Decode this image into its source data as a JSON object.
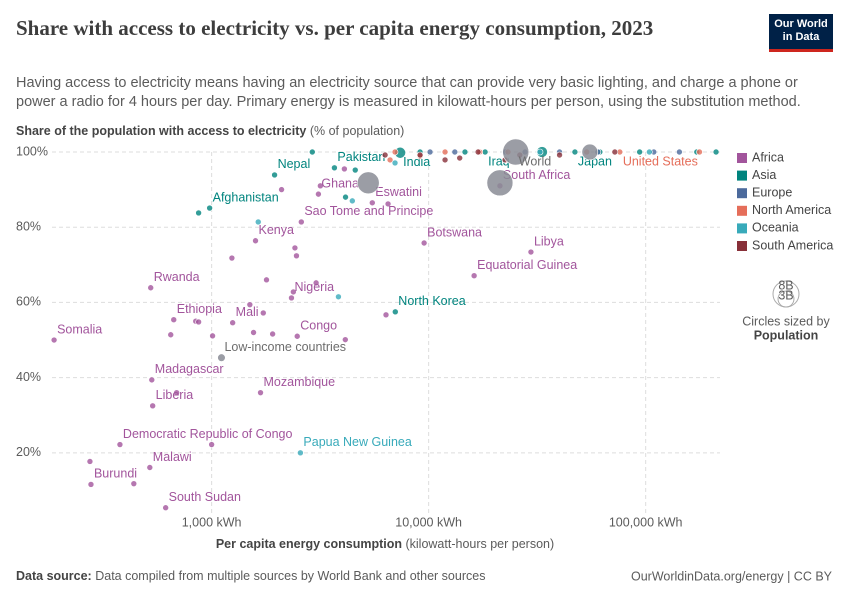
{
  "header": {
    "logo_line1": "Our World",
    "logo_line2": "in Data"
  },
  "chart_data": {
    "type": "scatter",
    "title": "Share with access to electricity vs. per capita energy consumption, 2023",
    "subtitle": "Having access to electricity means having an electricity source that can provide very basic lighting, and charge a phone or power a radio for 4 hours per day. Primary energy is measured in kilowatt-hours per person, using the substitution method.",
    "y_label": "Share of the population with access to electricity",
    "y_label_unit": "(% of population)",
    "x_label": "Per capita energy consumption",
    "x_label_unit": "(kilowatt-hours per person)",
    "x_log": true,
    "grid": true,
    "legend_position": "right",
    "xlim": [
      180,
      220000
    ],
    "ylim": [
      4,
      100
    ],
    "xticks": [
      {
        "value": 1000,
        "label": "1,000 kWh"
      },
      {
        "value": 10000,
        "label": "10,000 kWh"
      },
      {
        "value": 100000,
        "label": "100,000 kWh"
      }
    ],
    "yticks": [
      {
        "value": 20,
        "label": "20%"
      },
      {
        "value": 40,
        "label": "40%"
      },
      {
        "value": 60,
        "label": "60%"
      },
      {
        "value": 80,
        "label": "80%"
      },
      {
        "value": 100,
        "label": "100%"
      }
    ],
    "size_title": "Circles sized by",
    "size_variable": "Population",
    "size_legend": [
      {
        "value": 8000000000,
        "label": "8B"
      },
      {
        "value": 3000000000,
        "label": "3B"
      }
    ],
    "series": [
      {
        "name": "Africa",
        "color": "#a2559c",
        "x": [
          188,
          524,
          669,
          1250,
          2480,
          530,
          535,
          1680,
          378,
          519,
          278,
          614,
          1593,
          2333,
          3105,
          5500,
          2590,
          9530,
          29600,
          16200,
          21300,
          275,
          1000,
          1010,
          845,
          2100,
          3170,
          1560,
          1910,
          1730,
          1500,
          1240,
          1790,
          2380,
          3030,
          2420,
          2460,
          4130,
          6360,
          6500,
          4090,
          648,
          871,
          690,
          438
        ],
        "values": [
          50.0,
          63.9,
          55.4,
          54.6,
          51.0,
          39.4,
          32.5,
          36.0,
          22.2,
          16.1,
          11.6,
          5.4,
          76.4,
          61.2,
          88.8,
          86.5,
          81.4,
          75.8,
          73.4,
          67.1,
          91.0,
          17.7,
          22.2,
          51.1,
          55.0,
          90.0,
          91.0,
          52.0,
          51.6,
          57.2,
          59.4,
          71.8,
          66.0,
          62.8,
          65.2,
          74.5,
          72.4,
          50.1,
          56.7,
          86.2,
          95.5,
          51.4,
          54.8,
          36.0,
          11.8
        ],
        "labels": [
          "Somalia",
          "Rwanda",
          "Ethiopia",
          "Mali",
          "Congo",
          "Madagascar",
          "Liberia",
          "Mozambique",
          "Democratic Republic of Congo",
          "Malawi",
          "Burundi",
          "South Sudan",
          "Kenya",
          "Nigeria",
          "Ghana",
          "Eswatini",
          "Sao Tome and Principe",
          "Botswana",
          "Libya",
          "Equatorial Guinea",
          "South Africa",
          null,
          null,
          null,
          null,
          null,
          null,
          null,
          null,
          null,
          null,
          null,
          null,
          null,
          null,
          null,
          null,
          null,
          null,
          null,
          null,
          null,
          null,
          null,
          null
        ],
        "sizes": [
          18000000,
          14000000,
          126000000,
          23000000,
          6000000,
          30000000,
          5000000,
          33000000,
          102000000,
          21000000,
          13000000,
          11000000,
          55000000,
          220000000,
          34000000,
          1200000,
          230000,
          2600000,
          7000000,
          1700000,
          60000000,
          10000000,
          20000000,
          20000000,
          20000000,
          20000000,
          20000000,
          20000000,
          20000000,
          20000000,
          20000000,
          20000000,
          20000000,
          20000000,
          20000000,
          20000000,
          20000000,
          20000000,
          20000000,
          20000000,
          20000000,
          20000000,
          20000000,
          20000000,
          20000000
        ]
      },
      {
        "name": "Asia",
        "color": "#00847e",
        "x": [
          1950,
          3680,
          979,
          7390,
          18200,
          33300,
          47200,
          7020,
          871,
          2910,
          4140,
          4590,
          93800,
          172000,
          211000,
          9130,
          14700,
          61500
        ],
        "values": [
          93.9,
          95.8,
          85.1,
          99.8,
          100,
          100,
          100,
          57.5,
          83.8,
          100,
          88.0,
          95.2,
          100,
          100,
          100,
          100,
          100,
          100
        ],
        "labels": [
          "Nepal",
          "Pakistan",
          "Afghanistan",
          "India",
          "Iraq",
          null,
          "Japan",
          "North Korea",
          null,
          null,
          null,
          null,
          null,
          null,
          null,
          null,
          null,
          null
        ],
        "sizes": [
          30000000,
          240000000,
          42000000,
          1430000000,
          45000000,
          1410000000,
          124000000,
          26000000,
          20000000,
          20000000,
          20000000,
          20000000,
          20000000,
          20000000,
          20000000,
          20000000,
          20000000,
          20000000
        ]
      },
      {
        "name": "Europe",
        "color": "#4c6a9c",
        "x": [
          10150,
          13200,
          22500,
          27800,
          40100,
          60200,
          109000,
          143000
        ],
        "values": [
          100,
          100,
          100,
          100,
          100,
          100,
          100,
          100
        ],
        "labels": [
          null,
          null,
          null,
          null,
          null,
          null,
          null,
          null
        ],
        "sizes": [
          20000000,
          20000000,
          84000000,
          68000000,
          20000000,
          20000000,
          20000000,
          20000000
        ]
      },
      {
        "name": "North America",
        "color": "#e56e5a",
        "x": [
          76000,
          7000,
          11900,
          17200,
          23200,
          53500,
          177000,
          6640,
          9130
        ],
        "values": [
          100,
          100,
          100,
          100,
          100,
          100,
          100,
          97.9,
          98.9
        ],
        "labels": [
          "United States",
          null,
          null,
          null,
          null,
          null,
          null,
          null,
          null
        ],
        "sizes": [
          335000000,
          20000000,
          20000000,
          128000000,
          20000000,
          20000000,
          20000000,
          20000000,
          20000000
        ]
      },
      {
        "name": "Oceania",
        "color": "#38aaba",
        "x": [
          2565,
          1640,
          3840,
          4450,
          32600,
          104000,
          7000
        ],
        "values": [
          20.0,
          81.4,
          61.5,
          87.0,
          100,
          100,
          97.1
        ],
        "labels": [
          "Papua New Guinea",
          null,
          null,
          null,
          null,
          null,
          null
        ],
        "sizes": [
          10000000,
          20000000,
          20000000,
          20000000,
          20000000,
          26000000,
          20000000
        ]
      },
      {
        "name": "South America",
        "color": "#883039",
        "x": [
          6300,
          9130,
          11900,
          13900,
          16900,
          22500,
          26300,
          40100,
          72100
        ],
        "values": [
          99.2,
          99.2,
          97.9,
          98.4,
          100,
          97.9,
          99.2,
          99.2,
          100
        ],
        "labels": [
          null,
          null,
          null,
          null,
          null,
          null,
          null,
          null,
          null
        ],
        "sizes": [
          20000000,
          216000000,
          20000000,
          20000000,
          20000000,
          20000000,
          20000000,
          20000000,
          20000000
        ]
      }
    ],
    "aggregates": {
      "color": "#8a8c95",
      "x": [
        25200,
        1110,
        5270,
        21300,
        55300
      ],
      "values": [
        100,
        45.3,
        91.8,
        91.8,
        100
      ],
      "labels": [
        "World",
        "Low-income countries",
        null,
        null,
        null
      ],
      "sizes": [
        8100000000,
        700000000,
        5700000000,
        8000000000,
        3000000000
      ]
    }
  },
  "footer": {
    "source_label": "Data source:",
    "source": "Data compiled from multiple sources by World Bank and other sources",
    "credit": "OurWorldinData.org/energy | CC BY"
  }
}
